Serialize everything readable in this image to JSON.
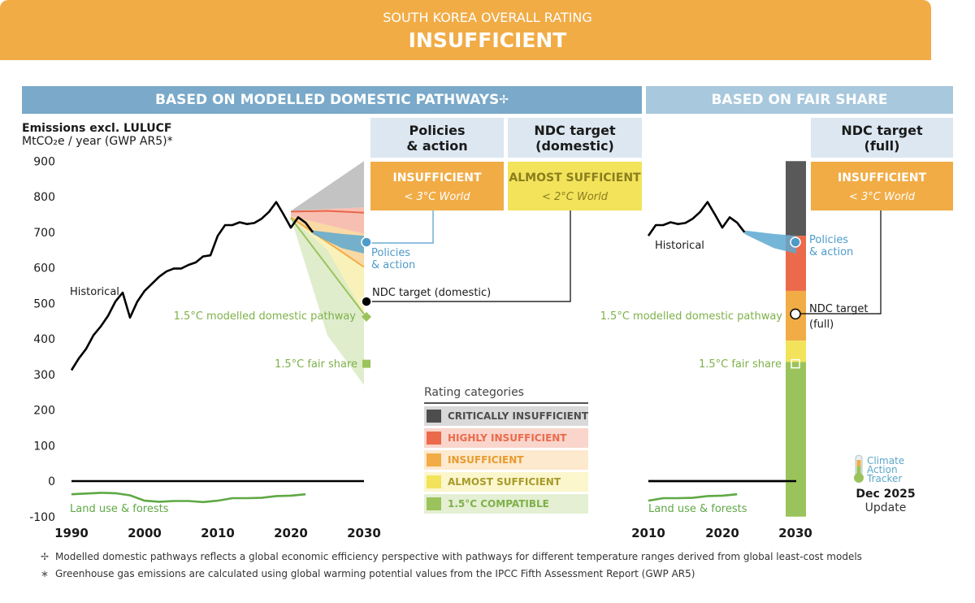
{
  "header": {
    "subtitle": "SOUTH KOREA OVERALL RATING",
    "rating": "INSUFFICIENT",
    "left_section": "BASED ON MODELLED DOMESTIC PATHWAYS",
    "left_section_mark": "✢",
    "right_section": "BASED ON FAIR SHARE"
  },
  "columns": {
    "policies": {
      "title_line1": "Policies",
      "title_line2": "& action",
      "rating": "INSUFFICIENT",
      "world": "< 3°C World"
    },
    "ndc_domestic": {
      "title_line1": "NDC target",
      "title_line2": "(domestic)",
      "rating": "ALMOST SUFFICIENT",
      "world": "< 2°C World"
    },
    "ndc_full": {
      "title_line1": "NDC target",
      "title_line2": "(full)",
      "rating": "INSUFFICIENT",
      "world": "< 3°C World"
    }
  },
  "y_axis": {
    "title": "Emissions excl. LULUCF",
    "unit": "MtCO₂e / year (GWP AR5)*"
  },
  "legend": {
    "title": "Rating categories",
    "items": [
      {
        "label": "CRITICALLY INSUFFICIENT",
        "color": "#4D4D4D",
        "bg": "#D9D9D9",
        "text_color": "#4D4D4D"
      },
      {
        "label": "HIGHLY INSUFFICIENT",
        "color": "#EB6A4B",
        "bg": "#F9D5CC",
        "text_color": "#EB6A4B"
      },
      {
        "label": "INSUFFICIENT",
        "color": "#F1AC46",
        "bg": "#FCE9CE",
        "text_color": "#E89B2F"
      },
      {
        "label": "ALMOST SUFFICIENT",
        "color": "#F2E35B",
        "bg": "#FBF6CC",
        "text_color": "#A89A2A"
      },
      {
        "label": "1.5°C COMPATIBLE",
        "color": "#9BC35B",
        "bg": "#E4EFD3",
        "text_color": "#7FB04A"
      }
    ]
  },
  "labels": {
    "historical": "Historical",
    "land_use": "Land use & forests",
    "policies_action_1": "Policies",
    "policies_action_2": "& action",
    "ndc_domestic": "NDC target (domestic)",
    "pathway_15": "1.5°C modelled domestic pathway",
    "fair_share_15": "1.5°C fair share",
    "ndc_full_1": "NDC target",
    "ndc_full_2": "(full)"
  },
  "footnotes": [
    {
      "symbol": "✢",
      "text": "Modelled domestic pathways reflects a global economic efficiency perspective with pathways for different temperature ranges derived from global least-cost models"
    },
    {
      "symbol": "∗",
      "text": "Greenhouse gas emissions are calculated using global warming potential values from the IPCC Fifth Assessment Report (GWP AR5)"
    }
  ],
  "logo": {
    "line1": "Climate",
    "line2": "Action",
    "line3": "Tracker",
    "date": "Dec 2025",
    "update": "Update"
  },
  "chart_data": [
    {
      "type": "line",
      "name": "modelled-domestic-pathways",
      "ylim": [
        -100,
        900
      ],
      "xlim": [
        1990,
        2030
      ],
      "x_ticks": [
        1990,
        2000,
        2010,
        2020,
        2030
      ],
      "y_ticks": [
        900,
        800,
        700,
        600,
        500,
        400,
        300,
        200,
        100,
        0,
        -100
      ],
      "historical": {
        "x": [
          1990,
          1991,
          1992,
          1993,
          1994,
          1995,
          1996,
          1997,
          1998,
          1999,
          2000,
          2001,
          2002,
          2003,
          2004,
          2005,
          2006,
          2007,
          2008,
          2009,
          2010,
          2011,
          2012,
          2013,
          2014,
          2015,
          2016,
          2017,
          2018,
          2019,
          2020,
          2021,
          2022,
          2023
        ],
        "y": [
          312,
          345,
          372,
          410,
          435,
          465,
          505,
          530,
          460,
          505,
          535,
          555,
          575,
          590,
          598,
          598,
          608,
          615,
          632,
          635,
          690,
          720,
          720,
          728,
          723,
          726,
          738,
          757,
          785,
          750,
          713,
          742,
          727,
          700
        ]
      },
      "land_use": {
        "x": [
          1990,
          1992,
          1994,
          1996,
          1998,
          2000,
          2002,
          2004,
          2006,
          2008,
          2010,
          2012,
          2014,
          2016,
          2018,
          2020,
          2022
        ],
        "y": [
          -37,
          -35,
          -33,
          -34,
          -40,
          -55,
          -58,
          -56,
          -56,
          -59,
          -55,
          -48,
          -48,
          -47,
          -42,
          -41,
          -37
        ]
      },
      "zero_line": 0,
      "bands_2030": [
        {
          "name": "critically-insufficient",
          "color": "#BDBDBD",
          "x": [
            2020,
            2030
          ],
          "lower": [
            760,
            770
          ],
          "upper": [
            760,
            900
          ]
        },
        {
          "name": "highly-insufficient",
          "color": "#F6B8AA",
          "x": [
            2020,
            2030
          ],
          "lower": [
            745,
            695
          ],
          "upper": [
            760,
            770
          ]
        },
        {
          "name": "insufficient",
          "color": "#F8D59A",
          "x": [
            2020,
            2030
          ],
          "lower": [
            740,
            605
          ],
          "upper": [
            745,
            695
          ]
        },
        {
          "name": "almost-sufficient",
          "color": "#F8F0B2",
          "x": [
            2020,
            2030
          ],
          "lower": [
            740,
            470
          ],
          "upper": [
            740,
            605
          ]
        },
        {
          "name": "15-compatible",
          "color": "#DCEBC8",
          "x": [
            2020,
            2025,
            2030
          ],
          "lower": [
            740,
            410,
            270
          ],
          "upper": [
            740,
            650,
            470
          ]
        }
      ],
      "boundary_lines": [
        {
          "color": "#E7674A",
          "x": [
            2020,
            2025,
            2030
          ],
          "y": [
            758,
            760,
            755
          ]
        },
        {
          "color": "#F1AC46",
          "x": [
            2020,
            2030
          ],
          "y": [
            742,
            602
          ]
        },
        {
          "color": "#9BC35B",
          "x": [
            2020,
            2030
          ],
          "y": [
            740,
            470
          ]
        }
      ],
      "policies_range": {
        "x": [
          2023,
          2025,
          2027,
          2030
        ],
        "upper": [
          705,
          700,
          695,
          690
        ],
        "lower": [
          695,
          675,
          655,
          640
        ]
      },
      "markers": [
        {
          "name": "policies-action",
          "x": 2030,
          "y": 672,
          "color": "#4E9BC9",
          "shape": "circle"
        },
        {
          "name": "ndc-domestic",
          "x": 2030,
          "y": 505,
          "color": "#000000",
          "shape": "circle"
        },
        {
          "name": "pathway-15",
          "x": 2030,
          "y": 462,
          "color": "#9BC35B",
          "shape": "diamond"
        },
        {
          "name": "fair-share-15",
          "x": 2030,
          "y": 330,
          "color": "#9BC35B",
          "shape": "square"
        }
      ]
    },
    {
      "type": "line",
      "name": "fair-share",
      "ylim": [
        -100,
        900
      ],
      "xlim": [
        2010,
        2030
      ],
      "x_ticks": [
        2010,
        2020,
        2030
      ],
      "historical": {
        "x": [
          2010,
          2011,
          2012,
          2013,
          2014,
          2015,
          2016,
          2017,
          2018,
          2019,
          2020,
          2021,
          2022,
          2023
        ],
        "y": [
          690,
          720,
          720,
          728,
          723,
          726,
          738,
          757,
          785,
          750,
          713,
          742,
          727,
          700
        ]
      },
      "land_use": {
        "x": [
          2010,
          2012,
          2014,
          2016,
          2018,
          2020,
          2022
        ],
        "y": [
          -55,
          -48,
          -48,
          -47,
          -42,
          -41,
          -37
        ]
      },
      "fair_share_bar": [
        {
          "name": "critically-insufficient",
          "color": "#595959",
          "from": 690,
          "to": 900
        },
        {
          "name": "highly-insufficient",
          "color": "#EB6A4B",
          "from": 535,
          "to": 690
        },
        {
          "name": "insufficient",
          "color": "#F1AC46",
          "from": 395,
          "to": 535
        },
        {
          "name": "almost-sufficient",
          "color": "#F2E35B",
          "from": 335,
          "to": 395
        },
        {
          "name": "15-compatible",
          "color": "#9BC35B",
          "from": -100,
          "to": 335
        }
      ],
      "policies_range": {
        "x": [
          2023,
          2025,
          2027,
          2030
        ],
        "upper": [
          705,
          700,
          695,
          690
        ],
        "lower": [
          695,
          675,
          655,
          640
        ]
      },
      "markers": [
        {
          "name": "policies-action",
          "x": 2030,
          "y": 672,
          "color": "#4E9BC9",
          "shape": "circle"
        },
        {
          "name": "ndc-full",
          "x": 2030,
          "y": 470,
          "color": "#ffffff",
          "shape": "circle"
        },
        {
          "name": "fair-share-15",
          "x": 2030,
          "y": 330,
          "color": "#9BC35B",
          "shape": "square-open"
        }
      ]
    }
  ]
}
